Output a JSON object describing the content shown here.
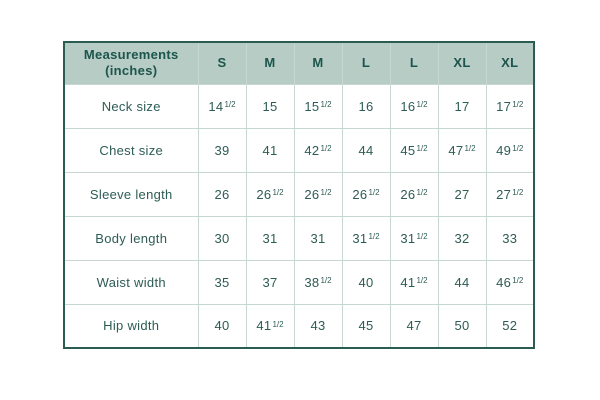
{
  "table": {
    "corner_label": "Measurements (inches)",
    "size_headers": [
      "S",
      "M",
      "M",
      "L",
      "L",
      "XL",
      "XL"
    ],
    "rows": [
      {
        "label": "Neck size",
        "values": [
          "14 1/2",
          "15",
          "15 1/2",
          "16",
          "16 1/2",
          "17",
          "17 1/2"
        ]
      },
      {
        "label": "Chest size",
        "values": [
          "39",
          "41",
          "42 1/2",
          "44",
          "45 1/2",
          "47 1/2",
          "49 1/2"
        ]
      },
      {
        "label": "Sleeve length",
        "values": [
          "26",
          "26 1/2",
          "26 1/2",
          "26 1/2",
          "26 1/2",
          "27",
          "27 1/2"
        ]
      },
      {
        "label": "Body length",
        "values": [
          "30",
          "31",
          "31",
          "31 1/2",
          "31 1/2",
          "32",
          "33"
        ]
      },
      {
        "label": "Waist width",
        "values": [
          "35",
          "37",
          "38 1/2",
          "40",
          "41 1/2",
          "44",
          "46 1/2"
        ]
      },
      {
        "label": "Hip width",
        "values": [
          "40",
          "41 1/2",
          "43",
          "45",
          "47",
          "50",
          "52"
        ]
      }
    ]
  },
  "colors": {
    "outer_border": "#2a5c52",
    "header_background": "#b6ccc5",
    "header_text": "#1c554b",
    "grid_line": "#c7d8d2",
    "cell_text": "#2d5c54",
    "page_background": "#ffffff"
  },
  "chart_data": {
    "type": "table",
    "title": "Measurements (inches)",
    "columns": [
      "Measurements (inches)",
      "S",
      "M",
      "M",
      "L",
      "L",
      "XL",
      "XL"
    ],
    "rows": [
      [
        "Neck size",
        14.5,
        15,
        15.5,
        16,
        16.5,
        17,
        17.5
      ],
      [
        "Chest size",
        39,
        41,
        42.5,
        44,
        45.5,
        47.5,
        49.5
      ],
      [
        "Sleeve length",
        26,
        26.5,
        26.5,
        26.5,
        26.5,
        27,
        27.5
      ],
      [
        "Body length",
        30,
        31,
        31,
        31.5,
        31.5,
        32,
        33
      ],
      [
        "Waist width",
        35,
        37,
        38.5,
        40,
        41.5,
        44,
        46.5
      ],
      [
        "Hip width",
        40,
        41.5,
        43,
        45,
        47,
        50,
        52
      ]
    ]
  }
}
